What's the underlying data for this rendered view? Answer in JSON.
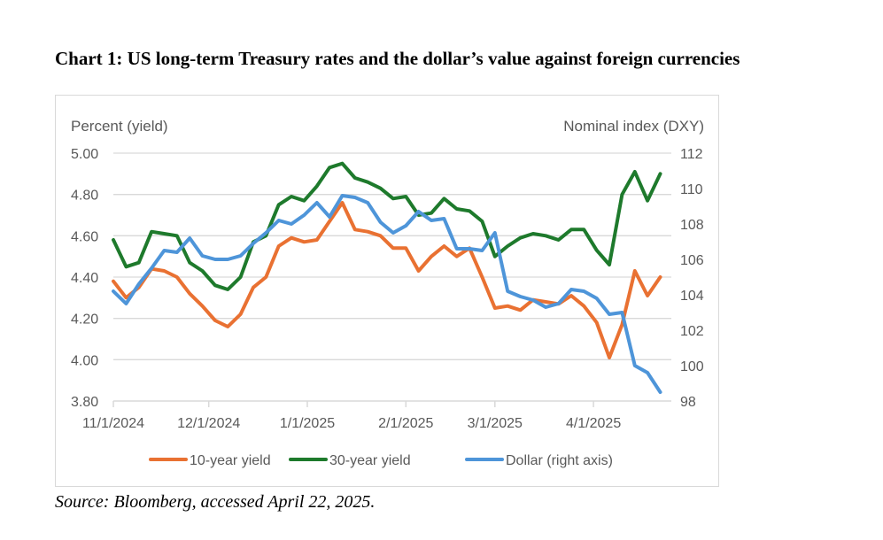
{
  "title": "Chart 1: US long-term Treasury rates and the dollar’s value against foreign currencies",
  "source": "Source: Bloomberg, accessed April 22, 2025.",
  "colors": {
    "ten_year": "#E97132",
    "thirty_year": "#1E7A2C",
    "dollar": "#4E95D9",
    "grid": "#d9d9d9",
    "axis_text": "#595959"
  },
  "chart_data": {
    "type": "line",
    "title": "Chart 1: US long-term Treasury rates and the dollar’s value against foreign currencies",
    "ylabel": "Percent (yield)",
    "y2label": "Nominal index (DXY)",
    "ylim": [
      3.8,
      5.0
    ],
    "y2lim": [
      98,
      112
    ],
    "yticks": [
      "5.00",
      "4.80",
      "4.60",
      "4.40",
      "4.20",
      "4.00",
      "3.80"
    ],
    "y2ticks": [
      "112",
      "110",
      "108",
      "106",
      "104",
      "102",
      "100",
      "98"
    ],
    "xticks": [
      "11/1/2024",
      "12/1/2024",
      "1/1/2025",
      "2/1/2025",
      "3/1/2025",
      "4/1/2025"
    ],
    "xtick_dates": [
      "2024-11-01",
      "2024-12-01",
      "2025-01-01",
      "2025-02-01",
      "2025-03-01",
      "2025-04-01"
    ],
    "grid": true,
    "legend": "bottom",
    "x": [
      "2024-11-01",
      "2024-11-05",
      "2024-11-09",
      "2024-11-13",
      "2024-11-17",
      "2024-11-21",
      "2024-11-25",
      "2024-11-29",
      "2024-12-03",
      "2024-12-07",
      "2024-12-11",
      "2024-12-15",
      "2024-12-19",
      "2024-12-23",
      "2024-12-27",
      "2024-12-31",
      "2025-01-04",
      "2025-01-08",
      "2025-01-12",
      "2025-01-16",
      "2025-01-20",
      "2025-01-24",
      "2025-01-28",
      "2025-02-01",
      "2025-02-05",
      "2025-02-09",
      "2025-02-13",
      "2025-02-17",
      "2025-02-21",
      "2025-02-25",
      "2025-03-01",
      "2025-03-05",
      "2025-03-09",
      "2025-03-13",
      "2025-03-17",
      "2025-03-21",
      "2025-03-25",
      "2025-03-29",
      "2025-04-02",
      "2025-04-06",
      "2025-04-10",
      "2025-04-14",
      "2025-04-18",
      "2025-04-22"
    ],
    "series": [
      {
        "name": "10-year yield",
        "axis": "left",
        "values": [
          4.38,
          4.3,
          4.35,
          4.44,
          4.43,
          4.4,
          4.32,
          4.26,
          4.19,
          4.16,
          4.22,
          4.35,
          4.4,
          4.55,
          4.59,
          4.57,
          4.58,
          4.67,
          4.76,
          4.63,
          4.62,
          4.6,
          4.54,
          4.54,
          4.43,
          4.5,
          4.55,
          4.5,
          4.54,
          4.4,
          4.25,
          4.26,
          4.24,
          4.29,
          4.28,
          4.27,
          4.31,
          4.26,
          4.18,
          4.01,
          4.17,
          4.43,
          4.31,
          4.4
        ]
      },
      {
        "name": "30-year yield",
        "axis": "left",
        "values": [
          4.58,
          4.45,
          4.47,
          4.62,
          4.61,
          4.6,
          4.47,
          4.43,
          4.36,
          4.34,
          4.4,
          4.57,
          4.6,
          4.75,
          4.79,
          4.77,
          4.84,
          4.93,
          4.95,
          4.88,
          4.86,
          4.83,
          4.78,
          4.79,
          4.7,
          4.71,
          4.78,
          4.73,
          4.72,
          4.67,
          4.5,
          4.55,
          4.59,
          4.61,
          4.6,
          4.58,
          4.63,
          4.63,
          4.53,
          4.46,
          4.8,
          4.91,
          4.77,
          4.9
        ]
      },
      {
        "name": "Dollar (right axis)",
        "axis": "right",
        "values": [
          104.2,
          103.5,
          104.6,
          105.5,
          106.5,
          106.4,
          107.2,
          106.2,
          106.0,
          106.0,
          106.2,
          106.9,
          107.5,
          108.2,
          108.0,
          108.5,
          109.2,
          108.4,
          109.6,
          109.5,
          109.2,
          108.1,
          107.5,
          107.9,
          108.7,
          108.2,
          108.3,
          106.6,
          106.6,
          106.5,
          107.5,
          104.2,
          103.9,
          103.7,
          103.3,
          103.5,
          104.3,
          104.2,
          103.8,
          102.9,
          103.0,
          100.0,
          99.6,
          98.5
        ]
      }
    ]
  }
}
